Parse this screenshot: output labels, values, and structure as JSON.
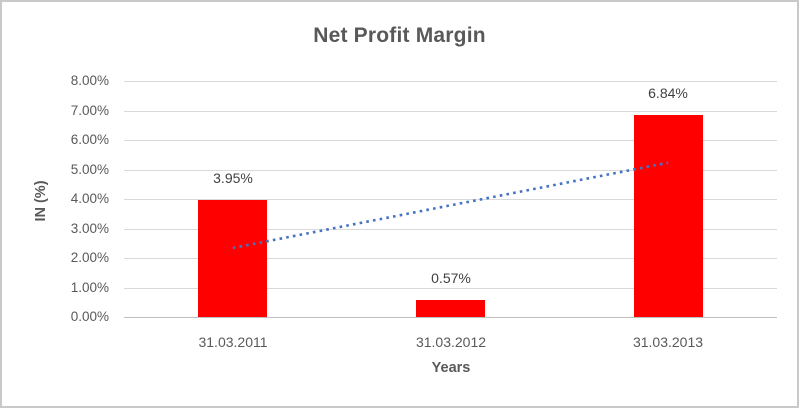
{
  "chart_data": {
    "type": "bar",
    "title": "Net Profit Margin",
    "xlabel": "Years",
    "ylabel": "IN (%)",
    "categories": [
      "31.03.2011",
      "31.03.2012",
      "31.03.2013"
    ],
    "values": [
      3.95,
      0.57,
      6.84
    ],
    "value_labels": [
      "3.95%",
      "0.57%",
      "6.84%"
    ],
    "ylim": [
      0,
      8
    ],
    "ytick_values": [
      0,
      1,
      2,
      3,
      4,
      5,
      6,
      7,
      8
    ],
    "ytick_labels": [
      "0.00%",
      "1.00%",
      "2.00%",
      "3.00%",
      "4.00%",
      "5.00%",
      "6.00%",
      "7.00%",
      "8.00%"
    ],
    "grid": true,
    "legend": "none",
    "series_name": "Net Profit Margin",
    "trendline": {
      "type": "linear",
      "style": "dotted",
      "start_value": 2.34,
      "end_value": 5.23
    },
    "colors": {
      "bar": "#FF0000",
      "trendline": "#4472C4",
      "title_text": "#595959",
      "axis_text": "#595959",
      "data_label_text": "#404040",
      "gridline": "#D9D9D9",
      "axis_line": "#BFBFBF",
      "frame_border": "#C9C9C9"
    }
  }
}
